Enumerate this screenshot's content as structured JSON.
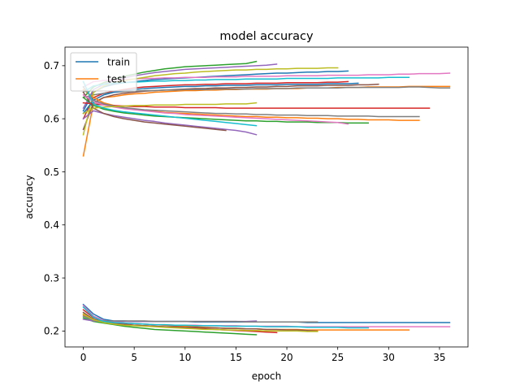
{
  "chart_data": {
    "type": "line",
    "title": "model accuracy",
    "xlabel": "epoch",
    "ylabel": "accuracy",
    "xlim": [
      -1.8,
      37.8
    ],
    "ylim": [
      0.17,
      0.735
    ],
    "xticks": [
      0,
      5,
      10,
      15,
      20,
      25,
      30,
      35
    ],
    "yticks": [
      0.2,
      0.3,
      0.4,
      0.5,
      0.6,
      0.7
    ],
    "grid": false,
    "legend": {
      "placement": "upper-left",
      "entries": [
        "train",
        "test"
      ]
    },
    "palette": [
      "#1f77b4",
      "#ff7f0e",
      "#2ca02c",
      "#d62728",
      "#9467bd",
      "#8c564b",
      "#e377c2",
      "#7f7f7f",
      "#bcbd22",
      "#17becf"
    ],
    "series": [
      {
        "name": "train",
        "values": [
          0.615,
          0.65,
          0.66,
          0.665,
          0.668,
          0.67,
          0.672,
          0.674,
          0.675,
          0.676,
          0.677,
          0.678,
          0.679,
          0.68,
          0.681,
          0.682,
          0.683,
          0.684,
          0.685,
          0.686,
          0.686,
          0.687,
          0.688,
          0.688,
          0.689,
          0.689,
          0.69
        ]
      },
      {
        "name": "test",
        "values": [
          0.53,
          0.63,
          0.64,
          0.642,
          0.645,
          0.647,
          0.648,
          0.65,
          0.651,
          0.652,
          0.653,
          0.653,
          0.654,
          0.654,
          0.655,
          0.655,
          0.656,
          0.656,
          0.656,
          0.657,
          0.657,
          0.657,
          0.658,
          0.658,
          0.658,
          0.659,
          0.659,
          0.659,
          0.66,
          0.66,
          0.66,
          0.66,
          0.661,
          0.661,
          0.661,
          0.661,
          0.661
        ]
      },
      {
        "values": [
          0.64,
          0.66,
          0.668,
          0.674,
          0.68,
          0.684,
          0.688,
          0.691,
          0.694,
          0.696,
          0.698,
          0.699,
          0.7,
          0.701,
          0.702,
          0.703,
          0.704,
          0.708
        ]
      },
      {
        "values": [
          0.6,
          0.64,
          0.648,
          0.652,
          0.655,
          0.658,
          0.66,
          0.661,
          0.662,
          0.663,
          0.664,
          0.664,
          0.665,
          0.665,
          0.666,
          0.666,
          0.666,
          0.667,
          0.667,
          0.667,
          0.668,
          0.668,
          0.668,
          0.668,
          0.669,
          0.669,
          0.67
        ]
      },
      {
        "values": [
          0.62,
          0.655,
          0.665,
          0.672,
          0.677,
          0.681,
          0.684,
          0.687,
          0.689,
          0.691,
          0.693,
          0.694,
          0.695,
          0.696,
          0.697,
          0.698,
          0.699,
          0.7,
          0.701,
          0.703
        ]
      },
      {
        "values": [
          0.58,
          0.63,
          0.64,
          0.645,
          0.648,
          0.65,
          0.652,
          0.653,
          0.654,
          0.655,
          0.656,
          0.657,
          0.657,
          0.658,
          0.658,
          0.659,
          0.659,
          0.66,
          0.66,
          0.661,
          0.661,
          0.662,
          0.662,
          0.662,
          0.663,
          0.663,
          0.663,
          0.664,
          0.664,
          0.665
        ]
      },
      {
        "values": [
          0.66,
          0.67,
          0.672,
          0.673,
          0.674,
          0.675,
          0.676,
          0.676,
          0.677,
          0.677,
          0.678,
          0.678,
          0.678,
          0.679,
          0.679,
          0.679,
          0.68,
          0.68,
          0.68,
          0.68,
          0.681,
          0.681,
          0.681,
          0.681,
          0.682,
          0.682,
          0.682,
          0.682,
          0.683,
          0.683,
          0.683,
          0.684,
          0.684,
          0.685,
          0.685,
          0.685,
          0.686
        ]
      },
      {
        "values": [
          0.64,
          0.645,
          0.648,
          0.65,
          0.651,
          0.652,
          0.653,
          0.653,
          0.654,
          0.654,
          0.655,
          0.655,
          0.655,
          0.656,
          0.656,
          0.656,
          0.656,
          0.657,
          0.657,
          0.657,
          0.657,
          0.658,
          0.658,
          0.658,
          0.658,
          0.658,
          0.659,
          0.659,
          0.659,
          0.659,
          0.659,
          0.659,
          0.66,
          0.66,
          0.659,
          0.658,
          0.658
        ]
      },
      {
        "values": [
          0.57,
          0.65,
          0.662,
          0.668,
          0.672,
          0.675,
          0.678,
          0.681,
          0.683,
          0.685,
          0.686,
          0.688,
          0.689,
          0.69,
          0.691,
          0.692,
          0.692,
          0.693,
          0.693,
          0.694,
          0.694,
          0.695,
          0.695,
          0.695,
          0.696,
          0.696
        ]
      },
      {
        "values": [
          0.65,
          0.662,
          0.665,
          0.667,
          0.668,
          0.669,
          0.67,
          0.671,
          0.671,
          0.672,
          0.672,
          0.673,
          0.673,
          0.674,
          0.674,
          0.674,
          0.675,
          0.675,
          0.675,
          0.675,
          0.676,
          0.676,
          0.676,
          0.676,
          0.676,
          0.677,
          0.677,
          0.677,
          0.677,
          0.677,
          0.678,
          0.678,
          0.678
        ]
      },
      {
        "values": [
          0.61,
          0.635,
          0.645,
          0.65,
          0.653,
          0.655,
          0.657,
          0.658,
          0.659,
          0.66,
          0.661,
          0.661,
          0.662,
          0.662,
          0.663,
          0.663,
          0.663,
          0.664,
          0.664,
          0.664,
          0.665,
          0.665,
          0.665,
          0.665,
          0.666,
          0.666,
          0.666,
          0.667
        ]
      },
      {
        "values": [
          0.655,
          0.64,
          0.63,
          0.625,
          0.621,
          0.618,
          0.616,
          0.614,
          0.612,
          0.611,
          0.61,
          0.609,
          0.608,
          0.607,
          0.606,
          0.605,
          0.604,
          0.604,
          0.603,
          0.603,
          0.602,
          0.602,
          0.601,
          0.601,
          0.6,
          0.6,
          0.599,
          0.599,
          0.598,
          0.598,
          0.598,
          0.597,
          0.597,
          0.597
        ]
      },
      {
        "values": [
          0.64,
          0.625,
          0.618,
          0.614,
          0.611,
          0.609,
          0.607,
          0.605,
          0.604,
          0.603,
          0.602,
          0.601,
          0.6,
          0.599,
          0.598,
          0.597,
          0.596,
          0.596,
          0.595,
          0.595,
          0.594,
          0.594,
          0.594,
          0.593,
          0.593,
          0.593,
          0.592,
          0.592,
          0.592
        ]
      },
      {
        "values": [
          0.63,
          0.628,
          0.626,
          0.625,
          0.624,
          0.623,
          0.623,
          0.622,
          0.622,
          0.622,
          0.621,
          0.621,
          0.621,
          0.621,
          0.62,
          0.62,
          0.62,
          0.62,
          0.62,
          0.62,
          0.62,
          0.62,
          0.62,
          0.62,
          0.62,
          0.62,
          0.62,
          0.62,
          0.62,
          0.62,
          0.62,
          0.62,
          0.62,
          0.62,
          0.62
        ]
      },
      {
        "values": [
          0.6,
          0.615,
          0.61,
          0.606,
          0.603,
          0.6,
          0.597,
          0.595,
          0.592,
          0.59,
          0.588,
          0.586,
          0.584,
          0.582,
          0.58,
          0.578,
          0.575,
          0.57
        ]
      },
      {
        "values": [
          0.65,
          0.62,
          0.61,
          0.604,
          0.6,
          0.597,
          0.594,
          0.592,
          0.59,
          0.588,
          0.586,
          0.584,
          0.582,
          0.58,
          0.578
        ]
      },
      {
        "values": [
          0.645,
          0.632,
          0.626,
          0.622,
          0.619,
          0.617,
          0.615,
          0.613,
          0.611,
          0.61,
          0.608,
          0.607,
          0.606,
          0.605,
          0.604,
          0.603,
          0.602,
          0.601,
          0.6,
          0.599,
          0.598,
          0.597,
          0.596,
          0.595,
          0.594,
          0.593,
          0.59
        ]
      },
      {
        "values": [
          0.66,
          0.635,
          0.628,
          0.624,
          0.621,
          0.619,
          0.617,
          0.616,
          0.615,
          0.614,
          0.613,
          0.612,
          0.611,
          0.61,
          0.61,
          0.609,
          0.609,
          0.608,
          0.608,
          0.607,
          0.607,
          0.607,
          0.606,
          0.606,
          0.606,
          0.605,
          0.605,
          0.605,
          0.605,
          0.604,
          0.604,
          0.604,
          0.604,
          0.604
        ]
      },
      {
        "values": [
          0.61,
          0.62,
          0.622,
          0.623,
          0.624,
          0.625,
          0.625,
          0.626,
          0.626,
          0.626,
          0.627,
          0.627,
          0.627,
          0.627,
          0.628,
          0.628,
          0.628,
          0.63
        ]
      },
      {
        "values": [
          0.67,
          0.628,
          0.62,
          0.616,
          0.613,
          0.611,
          0.609,
          0.607,
          0.605,
          0.603,
          0.601,
          0.599,
          0.597,
          0.595,
          0.593,
          0.591,
          0.589,
          0.587
        ]
      },
      {
        "values": [
          0.25,
          0.232,
          0.222,
          0.219,
          0.219,
          0.218,
          0.218,
          0.218,
          0.218,
          0.218,
          0.218,
          0.217,
          0.217,
          0.217,
          0.217,
          0.217,
          0.217,
          0.217,
          0.217,
          0.217,
          0.217,
          0.217,
          0.216,
          0.216,
          0.216,
          0.216,
          0.216,
          0.216,
          0.216,
          0.216,
          0.216,
          0.216,
          0.216,
          0.216,
          0.216,
          0.216,
          0.216
        ]
      },
      {
        "values": [
          0.23,
          0.22,
          0.217,
          0.216,
          0.215,
          0.214,
          0.213,
          0.212,
          0.211,
          0.21,
          0.209,
          0.208,
          0.207,
          0.206,
          0.205,
          0.205,
          0.204,
          0.204,
          0.203,
          0.203,
          0.203,
          0.203,
          0.202,
          0.202,
          0.202,
          0.202,
          0.202,
          0.202,
          0.202,
          0.202,
          0.202,
          0.202,
          0.202
        ]
      },
      {
        "values": [
          0.225,
          0.218,
          0.215,
          0.212,
          0.209,
          0.207,
          0.205,
          0.203,
          0.202,
          0.201,
          0.2,
          0.199,
          0.198,
          0.197,
          0.196,
          0.195,
          0.194,
          0.193
        ]
      },
      {
        "values": [
          0.24,
          0.225,
          0.218,
          0.215,
          0.213,
          0.211,
          0.21,
          0.209,
          0.208,
          0.207,
          0.206,
          0.205,
          0.204,
          0.203,
          0.202,
          0.201,
          0.2,
          0.199,
          0.198,
          0.197
        ]
      },
      {
        "values": [
          0.222,
          0.219,
          0.218,
          0.218,
          0.218,
          0.218,
          0.218,
          0.218,
          0.218,
          0.218,
          0.218,
          0.218,
          0.218,
          0.218,
          0.218,
          0.218,
          0.218,
          0.219
        ]
      },
      {
        "values": [
          0.235,
          0.222,
          0.217,
          0.214,
          0.212,
          0.211,
          0.21,
          0.209,
          0.208,
          0.208,
          0.207,
          0.207,
          0.206,
          0.206,
          0.205,
          0.205,
          0.204,
          0.204,
          0.203,
          0.203,
          0.202,
          0.202,
          0.201,
          0.2
        ]
      },
      {
        "values": [
          0.248,
          0.228,
          0.22,
          0.217,
          0.215,
          0.214,
          0.213,
          0.212,
          0.212,
          0.211,
          0.211,
          0.211,
          0.21,
          0.21,
          0.21,
          0.21,
          0.209,
          0.209,
          0.209,
          0.209,
          0.209,
          0.208,
          0.208,
          0.208,
          0.208,
          0.208,
          0.208,
          0.208,
          0.208,
          0.208,
          0.208,
          0.208,
          0.208,
          0.208,
          0.208,
          0.208,
          0.208
        ]
      },
      {
        "values": [
          0.228,
          0.22,
          0.219,
          0.219,
          0.219,
          0.219,
          0.219,
          0.218,
          0.218,
          0.218,
          0.218,
          0.218,
          0.218,
          0.218,
          0.218,
          0.218,
          0.217,
          0.217,
          0.217,
          0.217,
          0.217,
          0.217,
          0.217,
          0.217
        ]
      },
      {
        "values": [
          0.232,
          0.221,
          0.216,
          0.213,
          0.211,
          0.21,
          0.209,
          0.208,
          0.207,
          0.206,
          0.205,
          0.204,
          0.203,
          0.203,
          0.202,
          0.202,
          0.201,
          0.201,
          0.2,
          0.2,
          0.2,
          0.2,
          0.199,
          0.199
        ]
      },
      {
        "values": [
          0.245,
          0.226,
          0.218,
          0.216,
          0.215,
          0.214,
          0.213,
          0.212,
          0.212,
          0.211,
          0.211,
          0.21,
          0.21,
          0.21,
          0.209,
          0.209,
          0.209,
          0.209,
          0.208,
          0.208,
          0.208,
          0.208,
          0.207,
          0.207,
          0.207,
          0.207,
          0.206,
          0.206,
          0.206
        ]
      }
    ]
  }
}
